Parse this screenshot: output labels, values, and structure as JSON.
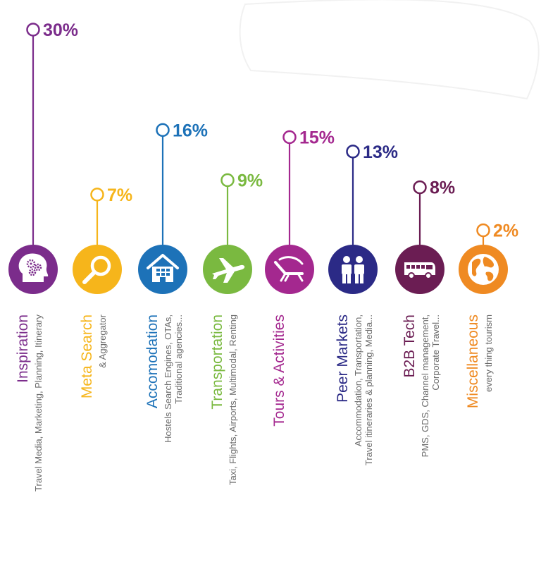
{
  "chart_data": {
    "type": "bar",
    "unit": "%",
    "categories": [
      "Inspiration",
      "Meta Search",
      "Accomodation",
      "Transportation",
      "Tours & Activities",
      "Peer Markets",
      "B2B Tech",
      "Miscellaneous"
    ],
    "values": [
      30,
      7,
      16,
      9,
      15,
      13,
      8,
      2
    ],
    "labels": [
      "30%",
      "7%",
      "16%",
      "9%",
      "15%",
      "13%",
      "8%",
      "2%"
    ],
    "descriptions": [
      [
        "Travel Media, Marketing, Planning, Itinerary"
      ],
      [
        "& Aggregator"
      ],
      [
        "Hostels Search Engines, OTAs,",
        "Traditional agencies..."
      ],
      [
        "Taxi, Flights, Airports, Multimodal, Renting"
      ],
      [],
      [
        "Accommodation, Transportation,",
        "Travel itineraries & planning, Media..."
      ],
      [
        "PMS, GDS, Channel management,",
        "Corporate Travel..."
      ],
      [
        "every thing tourism"
      ]
    ],
    "icons": [
      "brain-gears-icon",
      "magnifier-icon",
      "house-icon",
      "airplane-icon",
      "beach-chair-icon",
      "people-icon",
      "bus-icon",
      "globe-icon"
    ],
    "colors": [
      "#7b2c8b",
      "#f6b51b",
      "#1d72b8",
      "#7ab940",
      "#a4288f",
      "#2b2a86",
      "#6b1d53",
      "#ef8a22"
    ],
    "ylim": [
      0,
      30
    ]
  }
}
